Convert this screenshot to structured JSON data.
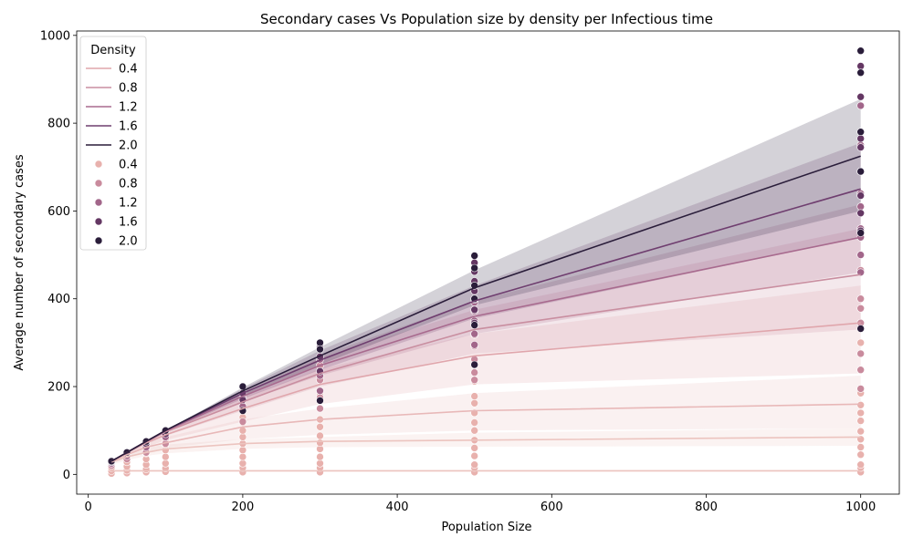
{
  "chart_data": {
    "type": "line",
    "title": "Secondary cases Vs Population size by density per Infectious time",
    "xlabel": "Population Size",
    "ylabel": "Average number of secondary cases",
    "xlim": [
      -15,
      1050
    ],
    "ylim": [
      -45,
      1010
    ],
    "x_ticks": [
      0,
      200,
      400,
      600,
      800,
      1000
    ],
    "y_ticks": [
      0,
      200,
      400,
      600,
      800,
      1000
    ],
    "grid": false,
    "legend": {
      "title": "Density",
      "placement": "top-left",
      "line_entries": [
        "0.4",
        "0.8",
        "1.2",
        "1.6",
        "2.0"
      ],
      "marker_entries": [
        "0.4",
        "0.8",
        "1.2",
        "1.6",
        "2.0"
      ]
    },
    "x": [
      30,
      50,
      75,
      100,
      200,
      300,
      500,
      1000
    ],
    "series": [
      {
        "name": "",
        "color": "#ecc4bf",
        "values": [
          8,
          8,
          8,
          8,
          8,
          8,
          8,
          8
        ],
        "ci_low": [
          6,
          6,
          6,
          6,
          6,
          6,
          6,
          6
        ],
        "ci_high": [
          11,
          11,
          11,
          11,
          11,
          11,
          11,
          11
        ]
      },
      {
        "name": "",
        "color": "#ecc4bf",
        "values": [
          28,
          40,
          50,
          58,
          70,
          75,
          78,
          85
        ],
        "ci_low": [
          22,
          32,
          42,
          48,
          58,
          62,
          63,
          65
        ],
        "ci_high": [
          30,
          48,
          60,
          68,
          80,
          85,
          95,
          105
        ]
      },
      {
        "name": "",
        "color": "#e8b8b8",
        "values": [
          30,
          45,
          62,
          72,
          108,
          125,
          145,
          160
        ],
        "ci_low": [
          24,
          38,
          50,
          60,
          80,
          90,
          100,
          105
        ],
        "ci_high": [
          30,
          50,
          72,
          85,
          125,
          150,
          185,
          225
        ]
      },
      {
        "name": "0.4",
        "color": "#e0a6ac",
        "values": [
          30,
          50,
          72,
          90,
          150,
          205,
          270,
          345
        ],
        "ci_low": [
          26,
          44,
          62,
          78,
          120,
          160,
          205,
          230
        ],
        "ci_high": [
          30,
          50,
          75,
          100,
          175,
          240,
          320,
          430
        ]
      },
      {
        "name": "0.8",
        "color": "#c98ea0",
        "values": [
          30,
          50,
          74,
          97,
          165,
          230,
          330,
          455
        ],
        "ci_low": [
          28,
          46,
          68,
          88,
          145,
          200,
          275,
          330
        ],
        "ci_high": [
          30,
          50,
          75,
          100,
          185,
          265,
          375,
          560
        ]
      },
      {
        "name": "1.2",
        "color": "#a86a8e",
        "values": [
          30,
          50,
          75,
          99,
          178,
          248,
          360,
          540
        ],
        "ci_low": [
          28,
          48,
          72,
          95,
          165,
          225,
          320,
          460
        ],
        "ci_high": [
          30,
          50,
          75,
          100,
          192,
          270,
          395,
          615
        ]
      },
      {
        "name": "1.6",
        "color": "#6f3e6f",
        "values": [
          30,
          50,
          75,
          100,
          185,
          260,
          395,
          650
        ],
        "ci_low": [
          29,
          48,
          72,
          96,
          172,
          238,
          355,
          540
        ],
        "ci_high": [
          30,
          50,
          75,
          100,
          195,
          282,
          430,
          755
        ]
      },
      {
        "name": "2.0",
        "color": "#2a1d3a",
        "values": [
          30,
          50,
          75,
          100,
          190,
          270,
          425,
          725
        ],
        "ci_low": [
          29,
          49,
          73,
          97,
          180,
          250,
          385,
          600
        ],
        "ci_high": [
          30,
          50,
          75,
          100,
          198,
          290,
          465,
          855
        ]
      }
    ],
    "scatter_groups": [
      {
        "name": "0.4",
        "color": "#e8b1ad",
        "points": [
          [
            30,
            2
          ],
          [
            30,
            8
          ],
          [
            30,
            15
          ],
          [
            30,
            22
          ],
          [
            30,
            28
          ],
          [
            50,
            3
          ],
          [
            50,
            9
          ],
          [
            50,
            18
          ],
          [
            50,
            28
          ],
          [
            50,
            38
          ],
          [
            75,
            5
          ],
          [
            75,
            12
          ],
          [
            75,
            22
          ],
          [
            75,
            35
          ],
          [
            75,
            48
          ],
          [
            75,
            58
          ],
          [
            100,
            6
          ],
          [
            100,
            14
          ],
          [
            100,
            25
          ],
          [
            100,
            40
          ],
          [
            100,
            55
          ],
          [
            100,
            68
          ],
          [
            100,
            80
          ],
          [
            200,
            5
          ],
          [
            200,
            15
          ],
          [
            200,
            25
          ],
          [
            200,
            40
          ],
          [
            200,
            55
          ],
          [
            200,
            70
          ],
          [
            200,
            85
          ],
          [
            200,
            100
          ],
          [
            200,
            118
          ],
          [
            200,
            130
          ],
          [
            300,
            5
          ],
          [
            300,
            15
          ],
          [
            300,
            25
          ],
          [
            300,
            40
          ],
          [
            300,
            58
          ],
          [
            300,
            72
          ],
          [
            300,
            88
          ],
          [
            300,
            108
          ],
          [
            300,
            125
          ],
          [
            300,
            150
          ],
          [
            300,
            180
          ],
          [
            300,
            215
          ],
          [
            500,
            5
          ],
          [
            500,
            15
          ],
          [
            500,
            22
          ],
          [
            500,
            42
          ],
          [
            500,
            60
          ],
          [
            500,
            78
          ],
          [
            500,
            100
          ],
          [
            500,
            118
          ],
          [
            500,
            140
          ],
          [
            500,
            162
          ],
          [
            500,
            178
          ],
          [
            500,
            212
          ],
          [
            1000,
            5
          ],
          [
            1000,
            15
          ],
          [
            1000,
            22
          ],
          [
            1000,
            45
          ],
          [
            1000,
            62
          ],
          [
            1000,
            80
          ],
          [
            1000,
            98
          ],
          [
            1000,
            122
          ],
          [
            1000,
            140
          ],
          [
            1000,
            158
          ],
          [
            1000,
            185
          ],
          [
            1000,
            238
          ],
          [
            1000,
            300
          ]
        ]
      },
      {
        "name": "0.8",
        "color": "#c98b9d",
        "points": [
          [
            30,
            20
          ],
          [
            30,
            28
          ],
          [
            50,
            35
          ],
          [
            50,
            45
          ],
          [
            75,
            50
          ],
          [
            75,
            65
          ],
          [
            100,
            70
          ],
          [
            100,
            88
          ],
          [
            200,
            120
          ],
          [
            200,
            150
          ],
          [
            200,
            170
          ],
          [
            300,
            150
          ],
          [
            300,
            175
          ],
          [
            300,
            215
          ],
          [
            300,
            248
          ],
          [
            500,
            215
          ],
          [
            500,
            232
          ],
          [
            500,
            262
          ],
          [
            500,
            292
          ],
          [
            500,
            318
          ],
          [
            500,
            345
          ],
          [
            1000,
            195
          ],
          [
            1000,
            238
          ],
          [
            1000,
            275
          ],
          [
            1000,
            345
          ],
          [
            1000,
            378
          ],
          [
            1000,
            400
          ],
          [
            1000,
            465
          ]
        ]
      },
      {
        "name": "1.2",
        "color": "#a2668a",
        "points": [
          [
            30,
            25
          ],
          [
            30,
            30
          ],
          [
            50,
            42
          ],
          [
            50,
            48
          ],
          [
            75,
            62
          ],
          [
            75,
            72
          ],
          [
            100,
            85
          ],
          [
            100,
            95
          ],
          [
            200,
            155
          ],
          [
            200,
            175
          ],
          [
            300,
            190
          ],
          [
            300,
            225
          ],
          [
            300,
            262
          ],
          [
            500,
            295
          ],
          [
            500,
            320
          ],
          [
            500,
            350
          ],
          [
            500,
            372
          ],
          [
            500,
            392
          ],
          [
            1000,
            460
          ],
          [
            1000,
            500
          ],
          [
            1000,
            540
          ],
          [
            1000,
            560
          ],
          [
            1000,
            610
          ],
          [
            1000,
            640
          ],
          [
            1000,
            750
          ],
          [
            1000,
            840
          ]
        ]
      },
      {
        "name": "1.6",
        "color": "#643763",
        "points": [
          [
            30,
            28
          ],
          [
            50,
            47
          ],
          [
            75,
            70
          ],
          [
            100,
            92
          ],
          [
            200,
            170
          ],
          [
            200,
            185
          ],
          [
            300,
            235
          ],
          [
            300,
            268
          ],
          [
            300,
            290
          ],
          [
            500,
            345
          ],
          [
            500,
            375
          ],
          [
            500,
            398
          ],
          [
            500,
            418
          ],
          [
            500,
            440
          ],
          [
            500,
            462
          ],
          [
            500,
            482
          ],
          [
            1000,
            555
          ],
          [
            1000,
            595
          ],
          [
            1000,
            635
          ],
          [
            1000,
            690
          ],
          [
            1000,
            745
          ],
          [
            1000,
            765
          ],
          [
            1000,
            860
          ],
          [
            1000,
            930
          ]
        ]
      },
      {
        "name": "2.0",
        "color": "#2a1d3a",
        "points": [
          [
            30,
            30
          ],
          [
            50,
            50
          ],
          [
            75,
            75
          ],
          [
            100,
            100
          ],
          [
            200,
            200
          ],
          [
            200,
            145
          ],
          [
            300,
            300
          ],
          [
            300,
            168
          ],
          [
            300,
            285
          ],
          [
            500,
            250
          ],
          [
            500,
            340
          ],
          [
            500,
            400
          ],
          [
            500,
            430
          ],
          [
            500,
            470
          ],
          [
            500,
            498
          ],
          [
            1000,
            332
          ],
          [
            1000,
            550
          ],
          [
            1000,
            690
          ],
          [
            1000,
            780
          ],
          [
            1000,
            915
          ],
          [
            1000,
            965
          ]
        ]
      }
    ]
  }
}
